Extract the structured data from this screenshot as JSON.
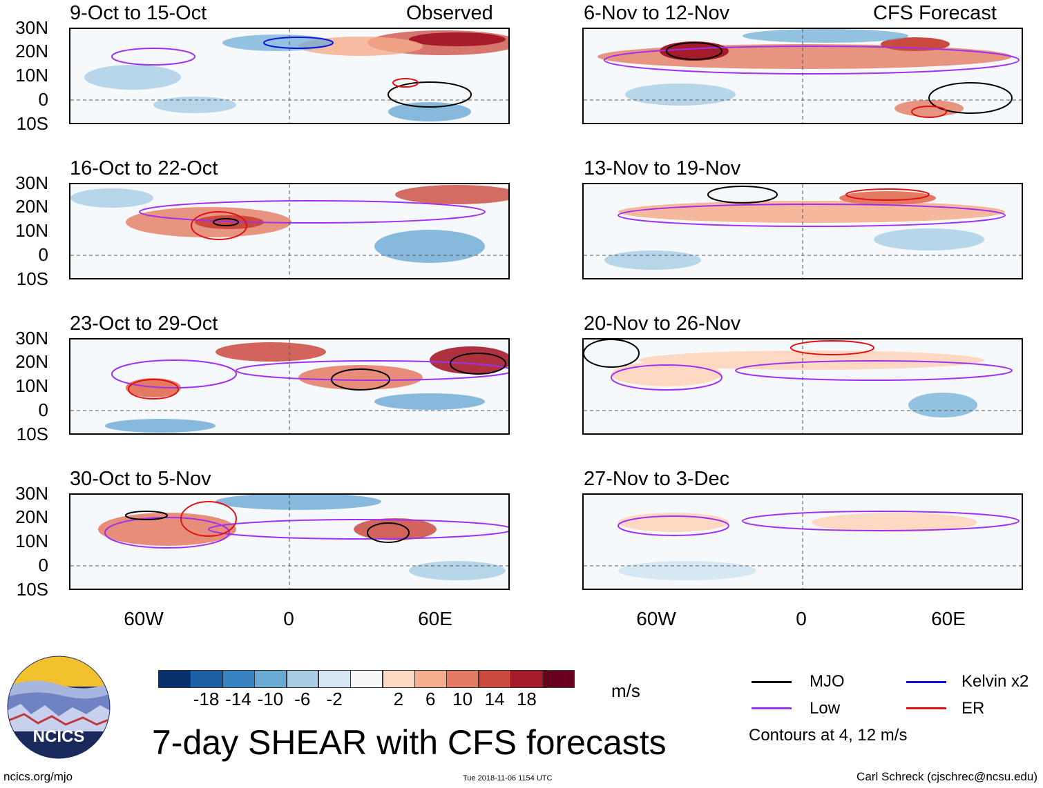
{
  "headers": {
    "observed": "Observed",
    "forecast": "CFS Forecast"
  },
  "lat_labels": [
    "30N",
    "20N",
    "10N",
    "0",
    "10S"
  ],
  "lon_labels": [
    "60W",
    "0",
    "60E"
  ],
  "observed_panels": [
    {
      "title": "9-Oct to 15-Oct"
    },
    {
      "title": "16-Oct to 22-Oct"
    },
    {
      "title": "23-Oct to 29-Oct"
    },
    {
      "title": "30-Oct to 5-Nov"
    }
  ],
  "forecast_panels": [
    {
      "title": "6-Nov to 12-Nov"
    },
    {
      "title": "13-Nov to 19-Nov"
    },
    {
      "title": "20-Nov to 26-Nov"
    },
    {
      "title": "27-Nov to 3-Dec"
    }
  ],
  "colorbar": {
    "colors": [
      "#08306b",
      "#1f5fa6",
      "#3a83c2",
      "#6aa9d4",
      "#a9cde6",
      "#d6e8f3",
      "#f7f7f7",
      "#fdd9c4",
      "#f5ad8c",
      "#e47a62",
      "#cb4a3e",
      "#a51b2a",
      "#67001f"
    ],
    "labels": [
      "-18",
      "-14",
      "-10",
      "-6",
      "-2",
      "2",
      "6",
      "10",
      "14",
      "18"
    ],
    "units": "m/s"
  },
  "title": "7-day SHEAR with CFS forecasts",
  "legend": {
    "items": [
      {
        "label": "MJO",
        "color": "#000000"
      },
      {
        "label": "Kelvin x2",
        "color": "#1010e0"
      },
      {
        "label": "Low",
        "color": "#a030f0"
      },
      {
        "label": "ER",
        "color": "#e01010"
      }
    ],
    "note": "Contours at 4, 12 m/s"
  },
  "logo_text": "NCICS",
  "footer": {
    "left": "ncics.org/mjo",
    "center": "Tue 2018-11-06 1154 UTC",
    "right": "Carl Schreck (cjschrec@ncsu.edu)"
  }
}
